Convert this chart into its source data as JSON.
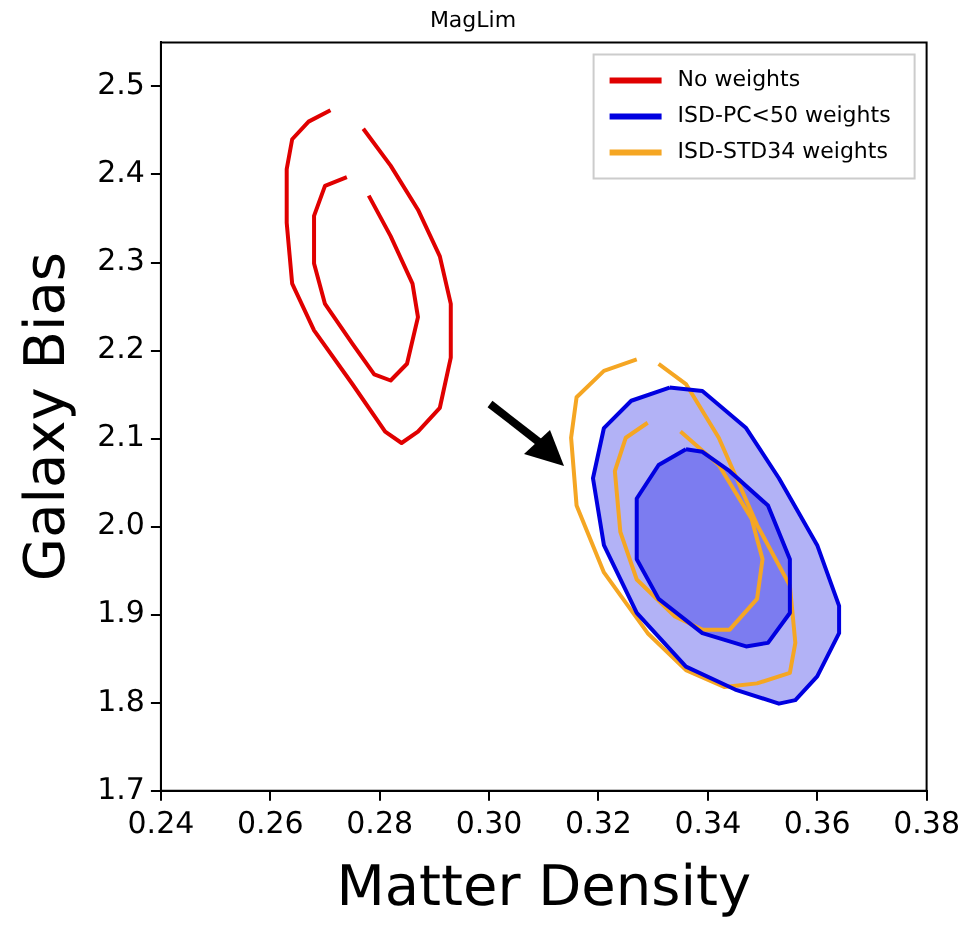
{
  "chart_data": {
    "type": "line",
    "title": "MagLim",
    "xlabel": "Matter Density",
    "ylabel": "Galaxy Bias",
    "xlim": [
      0.24,
      0.38
    ],
    "xticks": [
      0.24,
      0.26,
      0.28,
      {
        "value": 0.3,
        "label": "0.30"
      },
      0.32,
      0.34,
      0.36,
      0.38
    ],
    "ylim": [
      1.7,
      2.55
    ],
    "yticks": [
      1.7,
      1.8,
      1.9,
      {
        "value": 2.0,
        "label": "2.0"
      },
      2.1,
      2.2,
      2.3,
      2.4,
      2.5
    ],
    "grid": false,
    "legend": "top right",
    "marker": "none",
    "line_style": "solid",
    "series": [
      {
        "name": "No weights",
        "color": "#e00000",
        "x": [
          0.271,
          0.267,
          0.264,
          0.263,
          0.263,
          0.264,
          0.268,
          0.275,
          0.281,
          0.284,
          0.287,
          0.291,
          0.293,
          0.293,
          0.291,
          0.287,
          0.282,
          0.277
        ],
        "values": [
          2.473,
          2.46,
          2.44,
          2.406,
          2.345,
          2.276,
          2.223,
          2.162,
          2.108,
          2.095,
          2.108,
          2.135,
          2.192,
          2.253,
          2.307,
          2.36,
          2.41,
          2.452
        ]
      },
      {
        "color": "#e00000",
        "x": [
          0.274,
          0.27,
          0.268,
          0.268,
          0.27,
          0.275,
          0.279,
          0.282,
          0.285,
          0.287,
          0.286,
          0.282,
          0.278
        ],
        "values": [
          2.397,
          2.387,
          2.353,
          2.299,
          2.253,
          2.208,
          2.173,
          2.166,
          2.185,
          2.238,
          2.276,
          2.33,
          2.376
        ]
      },
      {
        "name": "ISD-PC<50 weights",
        "type": "area",
        "color": "#0000e0",
        "x": [
          0.333,
          0.326,
          0.321,
          0.319,
          0.321,
          0.327,
          0.336,
          0.345,
          0.353,
          0.356,
          0.36,
          0.364,
          0.364,
          0.36,
          0.353,
          0.347,
          0.339,
          0.333
        ],
        "values": [
          2.158,
          2.143,
          2.112,
          2.055,
          1.979,
          1.902,
          1.841,
          1.815,
          1.799,
          1.803,
          1.83,
          1.879,
          1.91,
          1.979,
          2.055,
          2.112,
          2.154,
          2.158
        ]
      },
      {
        "type": "area",
        "color": "#0000e0",
        "x": [
          0.336,
          0.331,
          0.327,
          0.327,
          0.331,
          0.339,
          0.347,
          0.351,
          0.355,
          0.355,
          0.351,
          0.344,
          0.339,
          0.336
        ],
        "values": [
          2.088,
          2.07,
          2.032,
          1.963,
          1.918,
          1.879,
          1.864,
          1.868,
          1.902,
          1.963,
          2.024,
          2.063,
          2.085,
          2.088
        ]
      },
      {
        "name": "ISD-STD34 weights",
        "color": "#f5a623",
        "x": [
          0.327,
          0.321,
          0.316,
          0.315,
          0.316,
          0.321,
          0.329,
          0.336,
          0.343,
          0.349,
          0.355,
          0.356,
          0.355,
          0.349,
          0.342,
          0.336,
          0.331
        ],
        "values": [
          2.19,
          2.177,
          2.147,
          2.101,
          2.024,
          1.948,
          1.879,
          1.837,
          1.818,
          1.822,
          1.834,
          1.868,
          1.933,
          2.002,
          2.101,
          2.162,
          2.185
        ]
      },
      {
        "color": "#f5a623",
        "x": [
          0.329,
          0.325,
          0.323,
          0.324,
          0.327,
          0.334,
          0.339,
          0.344,
          0.349,
          0.35,
          0.348,
          0.342,
          0.335
        ],
        "values": [
          2.118,
          2.101,
          2.063,
          1.994,
          1.94,
          1.898,
          1.883,
          1.883,
          1.918,
          1.963,
          2.009,
          2.07,
          2.108
        ]
      }
    ]
  }
}
